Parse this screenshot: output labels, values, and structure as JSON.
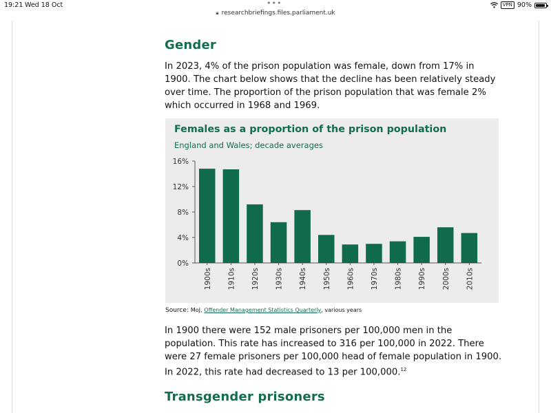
{
  "status_bar": {
    "time": "19:21",
    "date": "Wed 18 Oct",
    "vpn": "VPN",
    "battery": "90%",
    "battery_level": 0.9
  },
  "browser": {
    "url": "researchbriefings.files.parliament.uk"
  },
  "article": {
    "gender_heading": "Gender",
    "paragraph1": "In 2023, 4% of the prison population was female, down from 17% in 1900. The chart below shows that the decline has been relatively steady over time. The proportion of the prison population that was female 2% which occurred in 1968 and 1969.",
    "source_label": "Source:",
    "source_prefix": "MoJ,",
    "source_link": "Offender Management Statistics Quarterly",
    "source_suffix": ", various years",
    "paragraph2": "In 1900 there were 152 male prisoners per 100,000 men in the population. This rate has increased to 316 per 100,000 in 2022. There were 27 female prisoners per 100,000 head of female population in 1900. In 2022, this rate had decreased to 13 per 100,000.",
    "footnote_ref": "12",
    "transgender_heading": "Transgender prisoners"
  },
  "colors": {
    "accent": "#126d4f",
    "chart_bg": "#ececec",
    "bar": "#0f6b4a"
  },
  "chart_data": {
    "type": "bar",
    "title": "Females as a proportion of the prison population",
    "subtitle": "England and Wales; decade averages",
    "categories": [
      "1900s",
      "1910s",
      "1920s",
      "1930s",
      "1940s",
      "1950s",
      "1960s",
      "1970s",
      "1980s",
      "1990s",
      "2000s",
      "2010s"
    ],
    "values": [
      14.8,
      14.7,
      9.2,
      6.4,
      8.3,
      4.4,
      2.9,
      3.0,
      3.4,
      4.1,
      5.6,
      4.7
    ],
    "ylim": [
      0,
      16
    ],
    "yticks": [
      0,
      4,
      8,
      12,
      16
    ],
    "ytick_labels": [
      "0%",
      "4%",
      "8%",
      "12%",
      "16%"
    ],
    "grid": false,
    "xlabel": "",
    "ylabel": ""
  }
}
